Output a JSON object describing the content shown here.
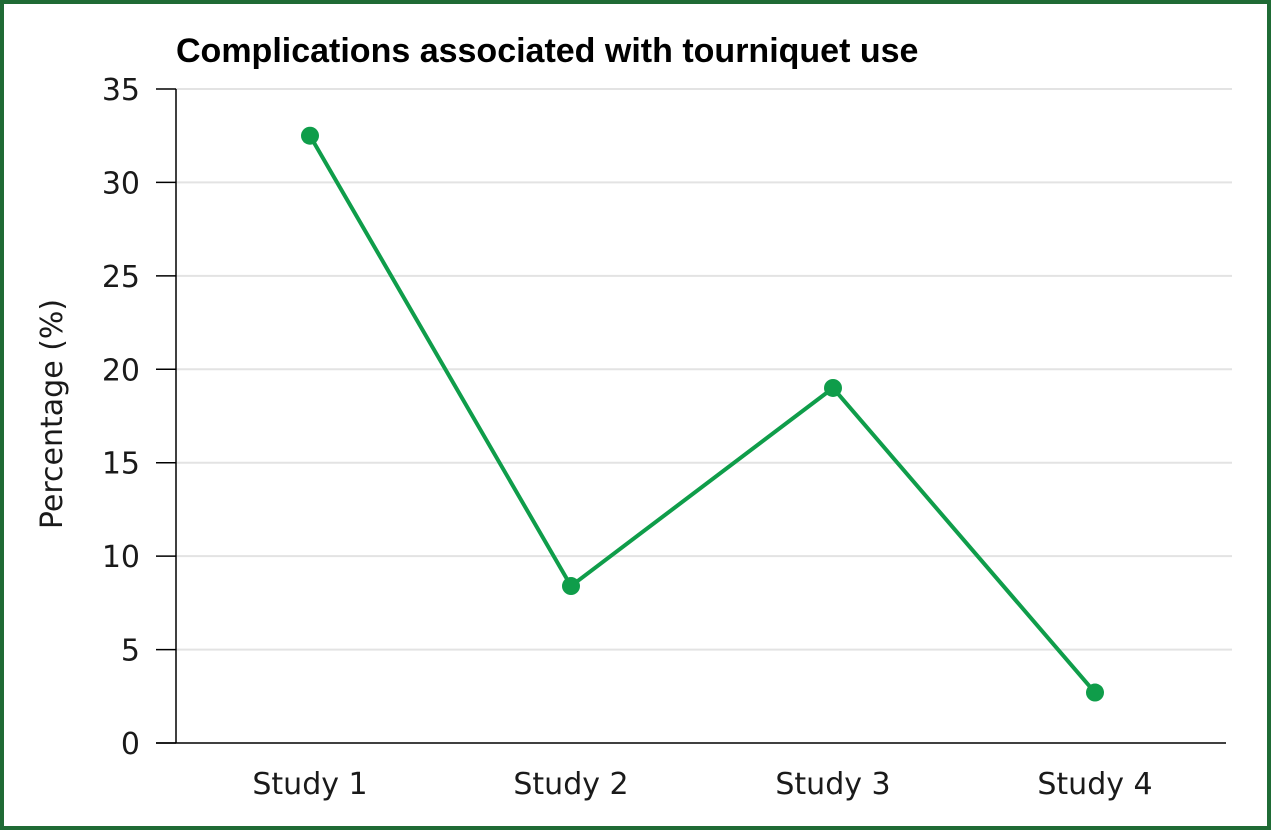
{
  "chart_data": {
    "type": "line",
    "title": "Complications associated with tourniquet use",
    "xlabel": "",
    "ylabel": "Percentage (%)",
    "categories": [
      "Study 1",
      "Study 2",
      "Study 3",
      "Study 4"
    ],
    "series": [
      {
        "values": [
          32.5,
          8.4,
          19.0,
          2.7
        ]
      }
    ],
    "ylim": [
      0,
      35
    ],
    "yticks": [
      0,
      5,
      10,
      15,
      20,
      25,
      30,
      35
    ],
    "grid": "horizontal",
    "colors": {
      "line": "#0f9d4a",
      "grid": "#e3e3e3",
      "axis": "#000000",
      "frame": "#1f6b35"
    }
  }
}
